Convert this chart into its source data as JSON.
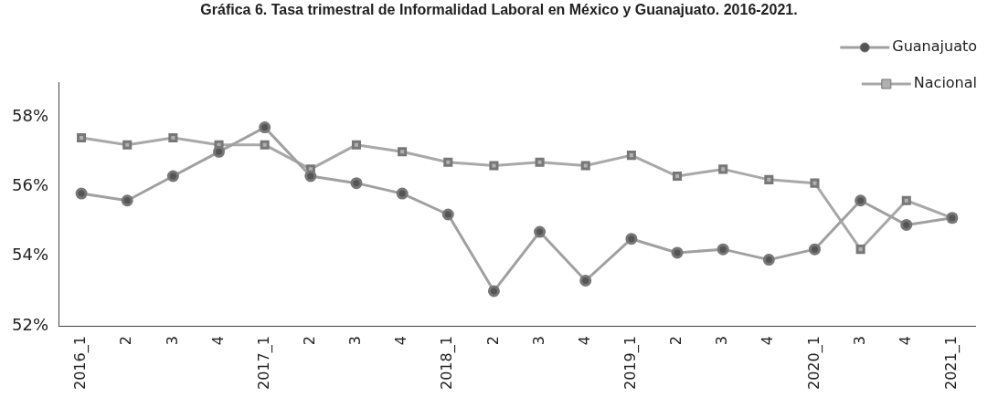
{
  "chart_data": {
    "type": "line",
    "title": "Gráfica 6. Tasa trimestral de Informalidad Laboral en México y Guanajuato. 2016-2021.",
    "categories": [
      "2016_1",
      "2",
      "3",
      "4",
      "2017_1",
      "2",
      "3",
      "4",
      "2018_1",
      "2",
      "3",
      "4",
      "2019_1",
      "2",
      "3",
      "4",
      "2020_1",
      "3",
      "4",
      "2021_1"
    ],
    "series": [
      {
        "name": "Guanajuato",
        "color": "#a0a0a0",
        "marker": "circle",
        "values": [
          55.8,
          55.6,
          56.3,
          57.0,
          57.7,
          56.3,
          56.1,
          55.8,
          55.2,
          53.0,
          54.7,
          53.3,
          54.5,
          54.1,
          54.2,
          53.9,
          54.2,
          55.6,
          54.9,
          55.1
        ]
      },
      {
        "name": "Nacional",
        "color": "#a8a8a8",
        "marker": "square",
        "values": [
          57.4,
          57.2,
          57.4,
          57.2,
          57.2,
          56.5,
          57.2,
          57.0,
          56.7,
          56.6,
          56.7,
          56.6,
          56.9,
          56.3,
          56.5,
          56.2,
          56.1,
          54.2,
          55.6,
          55.1
        ]
      }
    ],
    "ylim": [
      52,
      59
    ],
    "yticks": [
      {
        "value": 52,
        "label": "52%"
      },
      {
        "value": 54,
        "label": "54%"
      },
      {
        "value": 56,
        "label": "56%"
      },
      {
        "value": 58,
        "label": "58%"
      }
    ],
    "grid": false,
    "legend": "top right"
  }
}
